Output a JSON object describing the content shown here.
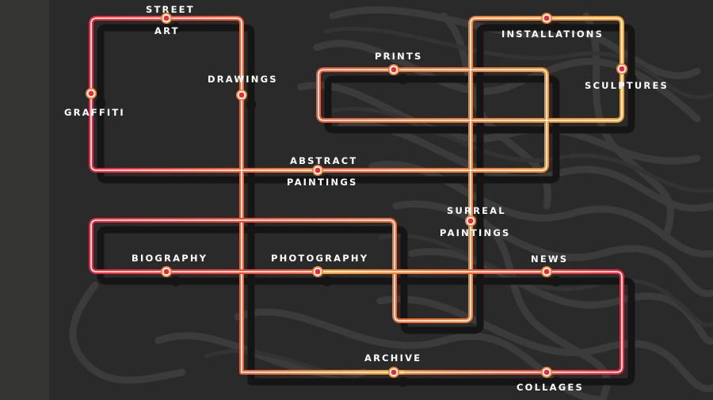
{
  "menu": {
    "items": [
      {
        "id": "street-art",
        "line1": "STREET",
        "line2": "ART"
      },
      {
        "id": "drawings",
        "line1": "DRAWINGS"
      },
      {
        "id": "graffiti",
        "line1": "GRAFFITI"
      },
      {
        "id": "prints",
        "line1": "PRINTS"
      },
      {
        "id": "installations",
        "line1": "INSTALLATIONS"
      },
      {
        "id": "sculptures",
        "line1": "SCULPTURES"
      },
      {
        "id": "abstract-paintings",
        "line1": "ABSTRACT",
        "line2": "PAINTINGS"
      },
      {
        "id": "surreal-paintings",
        "line1": "SURREAL",
        "line2": "PAINTINGS"
      },
      {
        "id": "biography",
        "line1": "BIOGRAPHY"
      },
      {
        "id": "photography",
        "line1": "PHOTOGRAPHY"
      },
      {
        "id": "news",
        "line1": "NEWS"
      },
      {
        "id": "archive",
        "line1": "ARCHIVE"
      },
      {
        "id": "collages",
        "line1": "COLLAGES"
      }
    ]
  },
  "colors": {
    "background": "#2a2a2a",
    "left_strip": "#353633",
    "line_red": "#e8283c",
    "line_orange": "#f0a030",
    "line_core": "#ffffff",
    "shadow": "#151515",
    "station_outer": "#f08830",
    "station_inner": "#e8283c",
    "label_text": "#ffffff"
  },
  "icons": {
    "station": "station-dot-icon",
    "background_art": "tangle-artwork-icon"
  }
}
